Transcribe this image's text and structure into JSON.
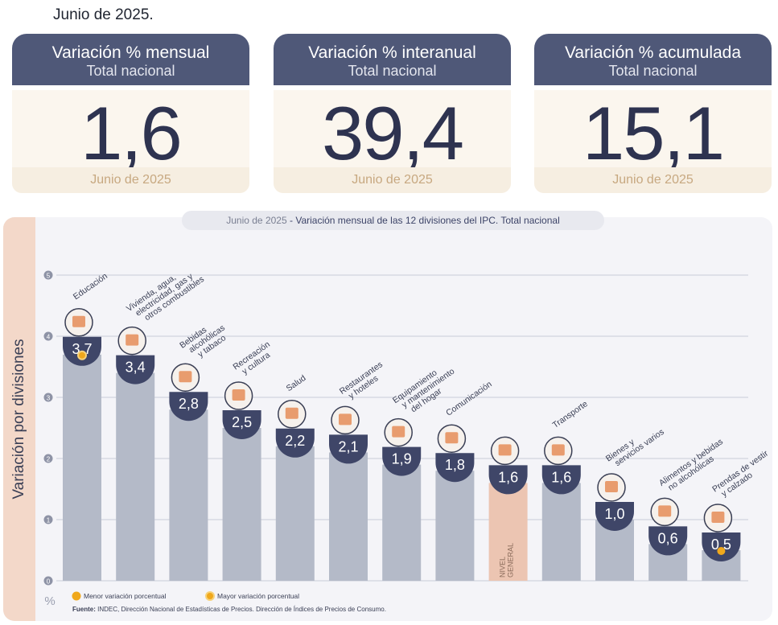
{
  "header": {
    "date": "Junio de 2025."
  },
  "cards": [
    {
      "title": "Variación % mensual",
      "subtitle": "Total nacional",
      "value": "1,6",
      "period": "Junio de 2025"
    },
    {
      "title": "Variación % interanual",
      "subtitle": "Total nacional",
      "value": "39,4",
      "period": "Junio de 2025"
    },
    {
      "title": "Variación % acumulada",
      "subtitle": "Total nacional",
      "value": "15,1",
      "period": "Junio de 2025"
    }
  ],
  "chart_data": {
    "type": "bar",
    "title_date": "Junio de 2025",
    "title": "Variación mensual de las 12 divisiones del IPC. Total nacional",
    "ylabel": "Variación por divisiones",
    "yunit": "%",
    "ylim": [
      0,
      5
    ],
    "yticks": [
      "0",
      "1",
      "2",
      "3",
      "4",
      "5"
    ],
    "grid": true,
    "categories": [
      "Educación",
      "Vivienda, agua, electricidad, gas y otros combustibles",
      "Bebidas alcohólicas y tabaco",
      "Recreación y cultura",
      "Salud",
      "Restaurantes y hoteles",
      "Equipamiento y mantenimiento del hogar",
      "Comunicación",
      "NIVEL GENERAL",
      "Transporte",
      "Bienes y servicios varios",
      "Alimentos y bebidas no alcohólicas",
      "Prendas de vestir y calzado"
    ],
    "values": [
      3.7,
      3.4,
      2.8,
      2.5,
      2.2,
      2.1,
      1.9,
      1.8,
      1.6,
      1.6,
      1.0,
      0.6,
      0.5
    ],
    "value_labels": [
      "3,7",
      "3,4",
      "2,8",
      "2,5",
      "2,2",
      "2,1",
      "1,9",
      "1,8",
      "1,6",
      "1,6",
      "1,0",
      "0,6",
      "0,5"
    ],
    "highlight_index": 8,
    "highest_index": 0,
    "lowest_index": 12,
    "legend": {
      "low": "Menor variación porcentual",
      "high": "Mayor variación porcentual"
    },
    "source_label": "Fuente:",
    "source": "INDEC, Dirección Nacional de Estadísticas de Precios. Dirección de Índices de Precios de Consumo.",
    "colors": {
      "bar": "#b4bac8",
      "highlight_bar": "#ecc5b2",
      "badge": "#3f4668",
      "marker": "#f0a81c",
      "icon": "#e58d58"
    }
  }
}
